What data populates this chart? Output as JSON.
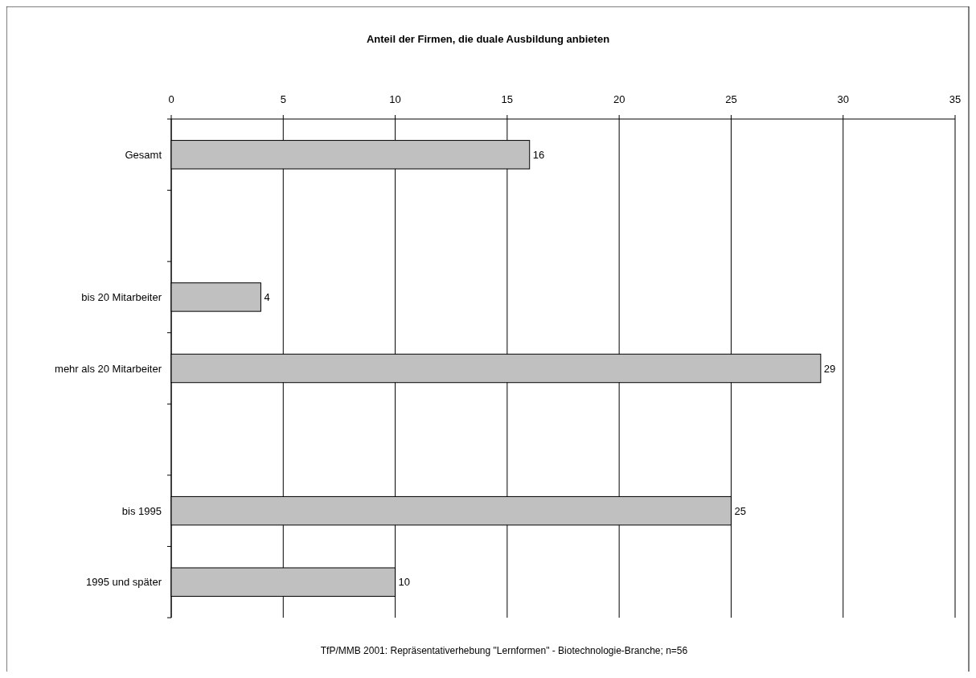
{
  "chart_data": {
    "type": "bar",
    "orientation": "horizontal",
    "title": "Anteil der Firmen, die duale Ausbildung anbieten",
    "categories": [
      "Gesamt",
      null,
      "bis 20 Mitarbeiter",
      "mehr als 20 Mitarbeiter",
      null,
      "bis 1995",
      "1995 und später"
    ],
    "values": [
      16,
      null,
      4,
      29,
      null,
      25,
      10
    ],
    "color": "#c0c0c0",
    "xlim": [
      0,
      35
    ],
    "xticks": [
      0,
      5,
      10,
      15,
      20,
      25,
      30,
      35
    ],
    "grid": "x",
    "data_labels": true,
    "annotations": [
      "TfP/MMB 2001: Repräsentativerhebung \"Lernformen\" - Biotechnologie-Branche; n=56"
    ]
  }
}
